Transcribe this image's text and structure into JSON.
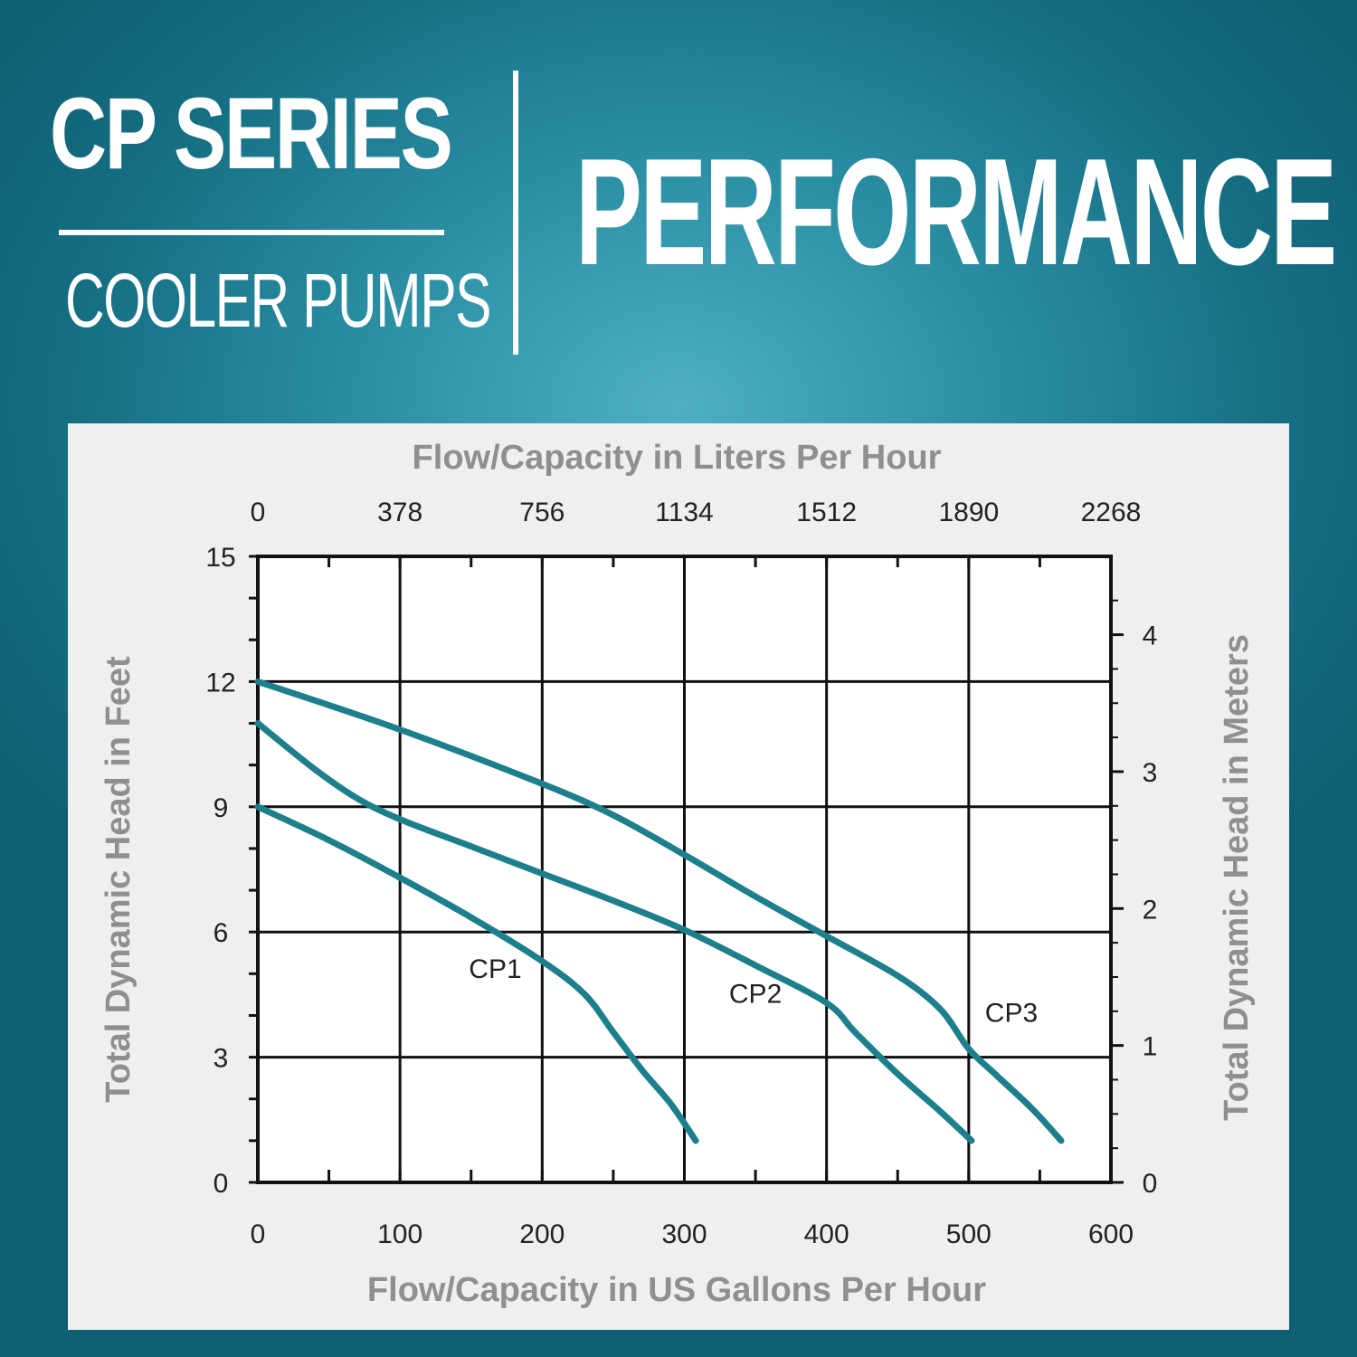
{
  "header": {
    "series_title": "CP SERIES",
    "series_subtitle": "COOLER PUMPS",
    "main_title": "PERFORMANCE"
  },
  "colors": {
    "curve": "#1d7f8c",
    "grid": "#111111",
    "panel": "#efefef",
    "axis_title": "#8f8f8f"
  },
  "chart_data": {
    "type": "line",
    "xlabel": "Flow/Capacity in US Gallons Per Hour",
    "xlabel_top": "Flow/Capacity in Liters Per Hour",
    "ylabel": "Total Dynamic Head in Feet",
    "ylabel_right": "Total Dynamic Head in Meters",
    "xlim": [
      0,
      600
    ],
    "ylim": [
      0,
      15
    ],
    "ylim_right": [
      0,
      4.572
    ],
    "x_ticks": [
      "0",
      "100",
      "200",
      "300",
      "400",
      "500",
      "600"
    ],
    "x_ticks_top": [
      "0",
      "378",
      "756",
      "1134",
      "1512",
      "1890",
      "2268"
    ],
    "y_ticks": [
      "0",
      "3",
      "6",
      "9",
      "12",
      "15"
    ],
    "y_ticks_right": [
      "0",
      "1",
      "2",
      "3",
      "4"
    ],
    "grid": true,
    "series": [
      {
        "name": "CP1",
        "x": [
          0,
          50,
          100,
          150,
          200,
          230,
          250,
          270,
          290,
          308
        ],
        "y": [
          9.0,
          8.2,
          7.3,
          6.35,
          5.3,
          4.5,
          3.6,
          2.7,
          1.9,
          1.0
        ]
      },
      {
        "name": "CP2",
        "x": [
          0,
          40,
          70,
          100,
          150,
          200,
          250,
          300,
          350,
          400,
          420,
          450,
          480,
          502
        ],
        "y": [
          11.0,
          9.9,
          9.2,
          8.7,
          8.05,
          7.4,
          6.75,
          6.05,
          5.2,
          4.3,
          3.6,
          2.6,
          1.7,
          1.0
        ]
      },
      {
        "name": "CP3",
        "x": [
          0,
          100,
          200,
          250,
          300,
          350,
          400,
          450,
          480,
          500,
          520,
          545,
          565
        ],
        "y": [
          12.0,
          10.85,
          9.55,
          8.8,
          7.85,
          6.85,
          5.9,
          4.95,
          4.15,
          3.2,
          2.55,
          1.75,
          1.0
        ]
      }
    ],
    "curve_labels": [
      {
        "text": "CP1",
        "x": 167,
        "y": 4.9
      },
      {
        "text": "CP2",
        "x": 350,
        "y": 4.3
      },
      {
        "text": "CP3",
        "x": 530,
        "y": 3.85
      }
    ]
  }
}
